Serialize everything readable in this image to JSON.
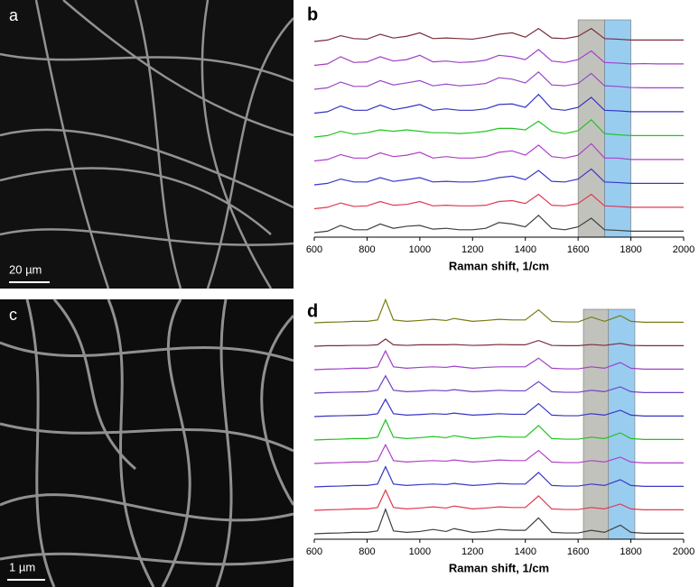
{
  "images": [
    {
      "label": "a",
      "scale_bar": "20 µm"
    },
    {
      "label": "c",
      "scale_bar": "1 µm"
    }
  ],
  "chart_data": [
    {
      "type": "line",
      "panel_label": "b",
      "xlabel": "Raman shift, 1/cm",
      "xlim": [
        600,
        2000
      ],
      "xticks": [
        600,
        800,
        1000,
        1200,
        1400,
        1600,
        1800,
        2000
      ],
      "bands": [
        {
          "xlim": [
            1600,
            1700
          ],
          "color": "#a8a8a0"
        },
        {
          "xlim": [
            1700,
            1800
          ],
          "color": "#6cb8ea"
        }
      ],
      "x": [
        600,
        650,
        700,
        750,
        800,
        850,
        900,
        950,
        1000,
        1050,
        1100,
        1150,
        1200,
        1250,
        1300,
        1350,
        1400,
        1450,
        1500,
        1550,
        1600,
        1650,
        1700,
        1750,
        1800,
        1850,
        1900,
        1950,
        2000
      ],
      "series": [
        {
          "color": "#7a2e3c",
          "values": [
            0,
            0.05,
            0.2,
            0.1,
            0.08,
            0.25,
            0.12,
            0.18,
            0.3,
            0.1,
            0.12,
            0.1,
            0.08,
            0.15,
            0.25,
            0.3,
            0.15,
            0.45,
            0.12,
            0.1,
            0.18,
            0.45,
            0.1,
            0.08,
            0.05,
            0.05,
            0.05,
            0.05,
            0.05
          ]
        },
        {
          "color": "#a040c8",
          "values": [
            0,
            0.05,
            0.3,
            0.1,
            0.12,
            0.3,
            0.15,
            0.2,
            0.35,
            0.12,
            0.15,
            0.1,
            0.12,
            0.18,
            0.35,
            0.3,
            0.2,
            0.55,
            0.15,
            0.1,
            0.2,
            0.5,
            0.1,
            0.08,
            0.05,
            0.06,
            0.05,
            0.05,
            0.05
          ]
        },
        {
          "color": "#9a48c8",
          "values": [
            0,
            0.05,
            0.25,
            0.1,
            0.1,
            0.3,
            0.15,
            0.22,
            0.3,
            0.12,
            0.18,
            0.12,
            0.15,
            0.2,
            0.4,
            0.35,
            0.22,
            0.6,
            0.15,
            0.12,
            0.2,
            0.55,
            0.12,
            0.1,
            0.06,
            0.05,
            0.05,
            0.05,
            0.05
          ]
        },
        {
          "color": "#3434c4",
          "values": [
            0,
            0.05,
            0.25,
            0.1,
            0.1,
            0.28,
            0.12,
            0.2,
            0.3,
            0.1,
            0.15,
            0.1,
            0.1,
            0.15,
            0.3,
            0.32,
            0.2,
            0.65,
            0.15,
            0.1,
            0.2,
            0.55,
            0.1,
            0.08,
            0.05,
            0.05,
            0.05,
            0.05,
            0.05
          ]
        },
        {
          "color": "#22c422",
          "values": [
            0,
            0.05,
            0.2,
            0.1,
            0.15,
            0.25,
            0.2,
            0.25,
            0.2,
            0.15,
            0.15,
            0.12,
            0.15,
            0.2,
            0.3,
            0.3,
            0.25,
            0.55,
            0.2,
            0.12,
            0.22,
            0.6,
            0.12,
            0.08,
            0.05,
            0.05,
            0.05,
            0.05,
            0.05
          ]
        },
        {
          "color": "#b040c8",
          "values": [
            0,
            0.05,
            0.22,
            0.1,
            0.1,
            0.28,
            0.15,
            0.2,
            0.3,
            0.1,
            0.15,
            0.1,
            0.1,
            0.15,
            0.3,
            0.35,
            0.2,
            0.55,
            0.15,
            0.1,
            0.2,
            0.6,
            0.1,
            0.1,
            0.05,
            0.05,
            0.05,
            0.05,
            0.05
          ]
        },
        {
          "color": "#3838c8",
          "values": [
            0,
            0.05,
            0.2,
            0.1,
            0.1,
            0.25,
            0.12,
            0.18,
            0.25,
            0.1,
            0.12,
            0.1,
            0.1,
            0.15,
            0.25,
            0.3,
            0.18,
            0.5,
            0.12,
            0.1,
            0.2,
            0.55,
            0.1,
            0.08,
            0.05,
            0.05,
            0.05,
            0.05,
            0.05
          ]
        },
        {
          "color": "#e03a50",
          "values": [
            0,
            0.05,
            0.2,
            0.08,
            0.1,
            0.25,
            0.12,
            0.15,
            0.25,
            0.1,
            0.12,
            0.1,
            0.1,
            0.12,
            0.25,
            0.28,
            0.18,
            0.5,
            0.12,
            0.1,
            0.18,
            0.5,
            0.1,
            0.08,
            0.05,
            0.05,
            0.05,
            0.05,
            0.05
          ]
        },
        {
          "color": "#404040",
          "values": [
            0,
            0.05,
            0.25,
            0.1,
            0.1,
            0.3,
            0.15,
            0.22,
            0.25,
            0.12,
            0.15,
            0.1,
            0.1,
            0.15,
            0.35,
            0.3,
            0.2,
            0.6,
            0.15,
            0.1,
            0.2,
            0.5,
            0.1,
            0.08,
            0.05,
            0.05,
            0.05,
            0.05,
            0.05
          ]
        }
      ]
    },
    {
      "type": "line",
      "panel_label": "d",
      "xlabel": "Raman shift, 1/cm",
      "xlim": [
        600,
        2000
      ],
      "xticks": [
        600,
        800,
        1000,
        1200,
        1400,
        1600,
        1800,
        2000
      ],
      "bands": [
        {
          "xlim": [
            1620,
            1715
          ],
          "color": "#a8a8a0"
        },
        {
          "xlim": [
            1715,
            1815
          ],
          "color": "#6cb8ea"
        }
      ],
      "x": [
        600,
        650,
        700,
        750,
        800,
        840,
        870,
        900,
        950,
        1000,
        1050,
        1100,
        1130,
        1200,
        1250,
        1300,
        1350,
        1400,
        1450,
        1500,
        1550,
        1600,
        1650,
        1700,
        1760,
        1800,
        1850,
        1900,
        1950,
        2000
      ],
      "series": [
        {
          "color": "#7a7a14",
          "values": [
            0,
            0.02,
            0.03,
            0.05,
            0.05,
            0.1,
            0.8,
            0.1,
            0.05,
            0.08,
            0.12,
            0.08,
            0.15,
            0.05,
            0.08,
            0.12,
            0.1,
            0.1,
            0.45,
            0.05,
            0.03,
            0.03,
            0.2,
            0.05,
            0.25,
            0.05,
            0.02,
            0.02,
            0.02,
            0.02
          ]
        },
        {
          "color": "#7a2e3c",
          "values": [
            0,
            0.02,
            0.02,
            0.03,
            0.03,
            0.05,
            0.25,
            0.05,
            0.03,
            0.05,
            0.05,
            0.05,
            0.06,
            0.03,
            0.04,
            0.06,
            0.05,
            0.05,
            0.2,
            0.03,
            0.02,
            0.02,
            0.06,
            0.03,
            0.1,
            0.03,
            0.02,
            0.02,
            0.02,
            0.02
          ]
        },
        {
          "color": "#a040c8",
          "values": [
            0,
            0.02,
            0.03,
            0.05,
            0.05,
            0.1,
            0.65,
            0.1,
            0.05,
            0.08,
            0.1,
            0.08,
            0.12,
            0.05,
            0.08,
            0.1,
            0.1,
            0.1,
            0.4,
            0.05,
            0.03,
            0.03,
            0.1,
            0.05,
            0.25,
            0.05,
            0.02,
            0.02,
            0.02,
            0.02
          ]
        },
        {
          "color": "#7040c8",
          "values": [
            0,
            0.02,
            0.03,
            0.04,
            0.05,
            0.1,
            0.6,
            0.1,
            0.05,
            0.07,
            0.1,
            0.08,
            0.12,
            0.05,
            0.07,
            0.1,
            0.08,
            0.08,
            0.4,
            0.05,
            0.03,
            0.03,
            0.1,
            0.05,
            0.22,
            0.05,
            0.02,
            0.02,
            0.02,
            0.02
          ]
        },
        {
          "color": "#3434c4",
          "values": [
            0,
            0.02,
            0.03,
            0.04,
            0.05,
            0.1,
            0.6,
            0.1,
            0.05,
            0.07,
            0.1,
            0.08,
            0.12,
            0.05,
            0.07,
            0.1,
            0.08,
            0.08,
            0.45,
            0.05,
            0.03,
            0.03,
            0.1,
            0.05,
            0.22,
            0.05,
            0.02,
            0.02,
            0.02,
            0.02
          ]
        },
        {
          "color": "#22c422",
          "values": [
            0,
            0.02,
            0.03,
            0.05,
            0.05,
            0.1,
            0.7,
            0.1,
            0.05,
            0.08,
            0.12,
            0.08,
            0.15,
            0.05,
            0.08,
            0.12,
            0.1,
            0.1,
            0.5,
            0.05,
            0.03,
            0.03,
            0.1,
            0.05,
            0.25,
            0.05,
            0.02,
            0.02,
            0.02,
            0.02
          ]
        },
        {
          "color": "#b040c8",
          "values": [
            0,
            0.02,
            0.03,
            0.05,
            0.05,
            0.1,
            0.65,
            0.1,
            0.05,
            0.08,
            0.1,
            0.08,
            0.12,
            0.05,
            0.08,
            0.12,
            0.1,
            0.1,
            0.45,
            0.05,
            0.03,
            0.03,
            0.1,
            0.05,
            0.22,
            0.05,
            0.02,
            0.02,
            0.02,
            0.02
          ]
        },
        {
          "color": "#3838c8",
          "values": [
            0,
            0.02,
            0.03,
            0.05,
            0.05,
            0.1,
            0.7,
            0.1,
            0.05,
            0.08,
            0.1,
            0.08,
            0.12,
            0.05,
            0.08,
            0.12,
            0.1,
            0.1,
            0.5,
            0.05,
            0.03,
            0.03,
            0.1,
            0.05,
            0.25,
            0.05,
            0.02,
            0.02,
            0.02,
            0.02
          ]
        },
        {
          "color": "#e03a50",
          "values": [
            0,
            0.02,
            0.03,
            0.05,
            0.05,
            0.1,
            0.7,
            0.1,
            0.05,
            0.08,
            0.12,
            0.08,
            0.15,
            0.05,
            0.08,
            0.12,
            0.1,
            0.1,
            0.5,
            0.05,
            0.03,
            0.03,
            0.1,
            0.05,
            0.22,
            0.05,
            0.02,
            0.02,
            0.02,
            0.02
          ]
        },
        {
          "color": "#404040",
          "values": [
            0,
            0.02,
            0.03,
            0.05,
            0.05,
            0.1,
            0.85,
            0.1,
            0.05,
            0.08,
            0.15,
            0.08,
            0.18,
            0.05,
            0.08,
            0.15,
            0.12,
            0.12,
            0.55,
            0.05,
            0.03,
            0.03,
            0.12,
            0.05,
            0.3,
            0.05,
            0.02,
            0.02,
            0.02,
            0.02
          ]
        }
      ]
    }
  ]
}
